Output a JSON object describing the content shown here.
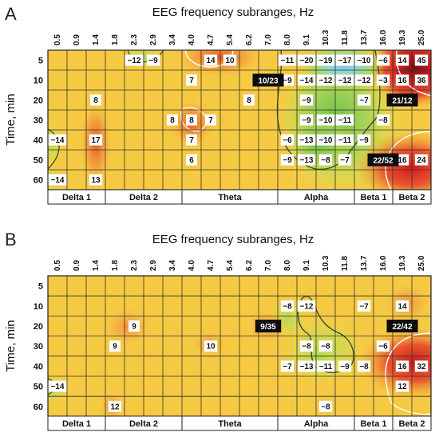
{
  "chart_data": [
    {
      "type": "heatmap",
      "panel": "A",
      "title": "EEG frequency subranges, Hz",
      "xlabel": "",
      "ylabel": "Time, min",
      "x": [
        "0.5",
        "0.9",
        "1.4",
        "1.8",
        "2.3",
        "2.9",
        "3.4",
        "4.0",
        "4.7",
        "5.4",
        "6.2",
        "7.0",
        "8.0",
        "9.1",
        "10.3",
        "11.8",
        "13.7",
        "16.0",
        "19.3",
        "25.0"
      ],
      "y": [
        "5",
        "10",
        "20",
        "30",
        "40",
        "50",
        "60"
      ],
      "bands": [
        {
          "label": "Delta 1",
          "from": 0,
          "to": 2
        },
        {
          "label": "Delta 2",
          "from": 3,
          "to": 6
        },
        {
          "label": "Theta",
          "from": 7,
          "to": 11
        },
        {
          "label": "Alpha",
          "from": 12,
          "to": 15
        },
        {
          "label": "Beta 1",
          "from": 16,
          "to": 17
        },
        {
          "label": "Beta 2",
          "from": 18,
          "to": 19
        }
      ],
      "values": [
        {
          "row": 0,
          "col": 4,
          "text": "−12"
        },
        {
          "row": 0,
          "col": 5,
          "text": "−9"
        },
        {
          "row": 0,
          "col": 8,
          "text": "14"
        },
        {
          "row": 0,
          "col": 9,
          "text": "10"
        },
        {
          "row": 0,
          "col": 12,
          "text": "−11"
        },
        {
          "row": 0,
          "col": 13,
          "text": "−20"
        },
        {
          "row": 0,
          "col": 14,
          "text": "−19"
        },
        {
          "row": 0,
          "col": 15,
          "text": "−17"
        },
        {
          "row": 0,
          "col": 16,
          "text": "−10"
        },
        {
          "row": 0,
          "col": 17,
          "text": "−6"
        },
        {
          "row": 0,
          "col": 18,
          "text": "14"
        },
        {
          "row": 0,
          "col": 19,
          "text": "45"
        },
        {
          "row": 1,
          "col": 7,
          "text": "7"
        },
        {
          "row": 1,
          "col": 12,
          "text": "−9"
        },
        {
          "row": 1,
          "col": 13,
          "text": "−14"
        },
        {
          "row": 1,
          "col": 14,
          "text": "−12"
        },
        {
          "row": 1,
          "col": 15,
          "text": "−12"
        },
        {
          "row": 1,
          "col": 16,
          "text": "−12"
        },
        {
          "row": 1,
          "col": 17,
          "text": "−3"
        },
        {
          "row": 1,
          "col": 18,
          "text": "16"
        },
        {
          "row": 1,
          "col": 19,
          "text": "36"
        },
        {
          "row": 2,
          "col": 2,
          "text": "8"
        },
        {
          "row": 2,
          "col": 10,
          "text": "8"
        },
        {
          "row": 2,
          "col": 13,
          "text": "−9"
        },
        {
          "row": 2,
          "col": 16,
          "text": "−7"
        },
        {
          "row": 3,
          "col": 6,
          "text": "8"
        },
        {
          "row": 3,
          "col": 7,
          "text": "8"
        },
        {
          "row": 3,
          "col": 8,
          "text": "7"
        },
        {
          "row": 3,
          "col": 13,
          "text": "−9"
        },
        {
          "row": 3,
          "col": 14,
          "text": "−10"
        },
        {
          "row": 3,
          "col": 15,
          "text": "−11"
        },
        {
          "row": 3,
          "col": 17,
          "text": "−8"
        },
        {
          "row": 4,
          "col": 0,
          "text": "−14"
        },
        {
          "row": 4,
          "col": 2,
          "text": "17"
        },
        {
          "row": 4,
          "col": 7,
          "text": "7"
        },
        {
          "row": 4,
          "col": 12,
          "text": "−6"
        },
        {
          "row": 4,
          "col": 13,
          "text": "−13"
        },
        {
          "row": 4,
          "col": 14,
          "text": "−10"
        },
        {
          "row": 4,
          "col": 15,
          "text": "−11"
        },
        {
          "row": 4,
          "col": 16,
          "text": "−9"
        },
        {
          "row": 5,
          "col": 7,
          "text": "6"
        },
        {
          "row": 5,
          "col": 12,
          "text": "−9"
        },
        {
          "row": 5,
          "col": 13,
          "text": "−13"
        },
        {
          "row": 5,
          "col": 14,
          "text": "−8"
        },
        {
          "row": 5,
          "col": 15,
          "text": "−7"
        },
        {
          "row": 5,
          "col": 18,
          "text": "16"
        },
        {
          "row": 5,
          "col": 19,
          "text": "24"
        },
        {
          "row": 6,
          "col": 0,
          "text": "−14"
        },
        {
          "row": 6,
          "col": 2,
          "text": "13"
        }
      ],
      "markers": [
        {
          "row": 1,
          "col": 11,
          "text": "10/23"
        },
        {
          "row": 2,
          "col": 18,
          "text": "21/12"
        },
        {
          "row": 5,
          "col": 17,
          "text": "22/52"
        }
      ]
    },
    {
      "type": "heatmap",
      "panel": "B",
      "title": "EEG frequency subranges, Hz",
      "xlabel": "",
      "ylabel": "Time, min",
      "x": [
        "0.5",
        "0.9",
        "1.4",
        "1.8",
        "2.3",
        "2.9",
        "3.4",
        "4.0",
        "4.7",
        "5.4",
        "6.2",
        "7.0",
        "8.0",
        "9.1",
        "10.3",
        "11.8",
        "13.7",
        "16.0",
        "19.3",
        "25.0"
      ],
      "y": [
        "5",
        "10",
        "20",
        "30",
        "40",
        "50",
        "60"
      ],
      "bands": [
        {
          "label": "Delta 1",
          "from": 0,
          "to": 2
        },
        {
          "label": "Delta 2",
          "from": 3,
          "to": 6
        },
        {
          "label": "Theta",
          "from": 7,
          "to": 11
        },
        {
          "label": "Alpha",
          "from": 12,
          "to": 15
        },
        {
          "label": "Beta 1",
          "from": 16,
          "to": 17
        },
        {
          "label": "Beta 2",
          "from": 18,
          "to": 19
        }
      ],
      "values": [
        {
          "row": 1,
          "col": 12,
          "text": "−8"
        },
        {
          "row": 1,
          "col": 13,
          "text": "−12"
        },
        {
          "row": 1,
          "col": 16,
          "text": "−7"
        },
        {
          "row": 1,
          "col": 18,
          "text": "14"
        },
        {
          "row": 2,
          "col": 4,
          "text": "9"
        },
        {
          "row": 3,
          "col": 3,
          "text": "9"
        },
        {
          "row": 3,
          "col": 8,
          "text": "10"
        },
        {
          "row": 3,
          "col": 13,
          "text": "−8"
        },
        {
          "row": 3,
          "col": 14,
          "text": "−8"
        },
        {
          "row": 3,
          "col": 17,
          "text": "−6"
        },
        {
          "row": 4,
          "col": 12,
          "text": "−7"
        },
        {
          "row": 4,
          "col": 13,
          "text": "−13"
        },
        {
          "row": 4,
          "col": 14,
          "text": "−11"
        },
        {
          "row": 4,
          "col": 15,
          "text": "−9"
        },
        {
          "row": 4,
          "col": 16,
          "text": "−8"
        },
        {
          "row": 4,
          "col": 18,
          "text": "16"
        },
        {
          "row": 4,
          "col": 19,
          "text": "32"
        },
        {
          "row": 5,
          "col": 0,
          "text": "−14"
        },
        {
          "row": 5,
          "col": 18,
          "text": "12"
        },
        {
          "row": 6,
          "col": 3,
          "text": "12"
        },
        {
          "row": 6,
          "col": 14,
          "text": "−8"
        }
      ],
      "markers": [
        {
          "row": 2,
          "col": 11,
          "text": "9/35"
        },
        {
          "row": 2,
          "col": 18,
          "text": "22/42"
        }
      ]
    }
  ]
}
